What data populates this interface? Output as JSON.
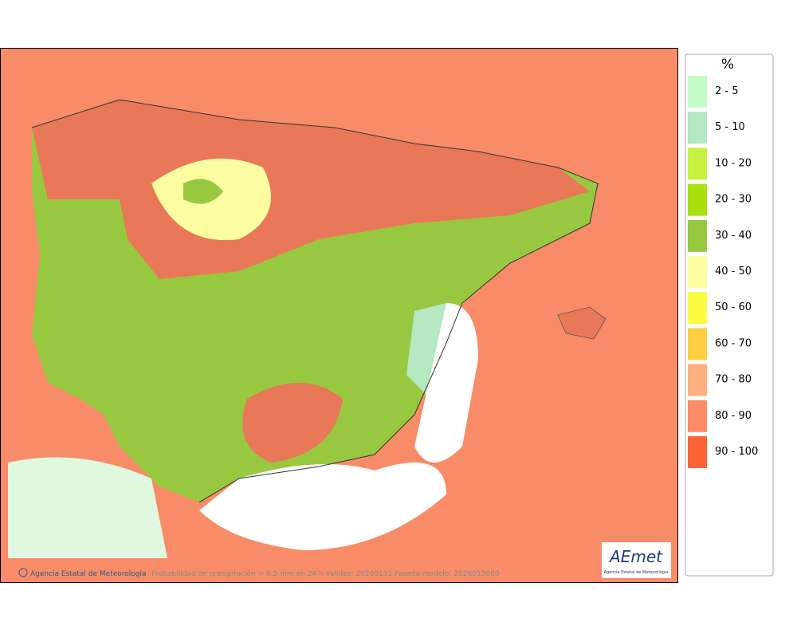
{
  "legend": {
    "title": "%",
    "items": [
      {
        "label": "2 - 5",
        "color": "#c4fcc8"
      },
      {
        "label": "5 - 10",
        "color": "#b4e8c0"
      },
      {
        "label": "10 - 20",
        "color": "#c8f040"
      },
      {
        "label": "20 - 30",
        "color": "#a8e010"
      },
      {
        "label": "30 - 40",
        "color": "#98c840"
      },
      {
        "label": "40 - 50",
        "color": "#fcfca0"
      },
      {
        "label": "50 - 60",
        "color": "#fcfc40"
      },
      {
        "label": "60 - 70",
        "color": "#fcd040"
      },
      {
        "label": "70 - 80",
        "color": "#fcb080"
      },
      {
        "label": "80 - 90",
        "color": "#fc8c68"
      },
      {
        "label": "90 - 100",
        "color": "#fc6438"
      }
    ]
  },
  "footer": {
    "credit": "Agencia Estatal de Meteorología",
    "caption": "Probabilidad de precipitación > 0.5 mm en 24 h Validez: 20260131 Pasada modelo: 2026013000"
  },
  "logo": {
    "name": "AEmet",
    "subtitle": "Agencia Estatal de Meteorología"
  }
}
